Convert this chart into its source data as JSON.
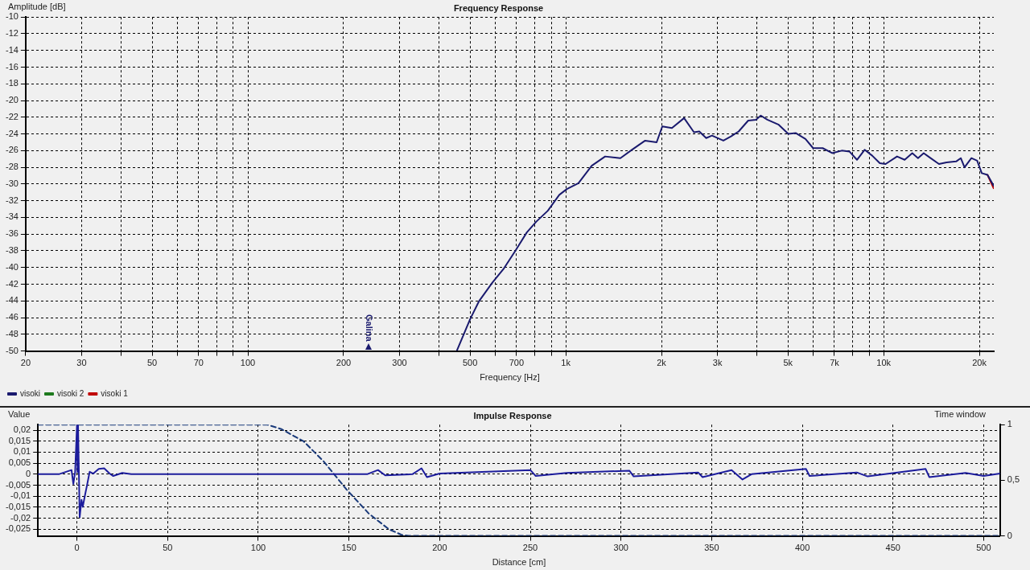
{
  "chart_data": [
    {
      "type": "line",
      "title": "Frequency Response",
      "xlabel": "Frequency [Hz]",
      "ylabel": "Amplitude [dB]",
      "log": "x",
      "grid": true,
      "legend": "bottom left",
      "marker": "none",
      "line_style": "solid",
      "xlim": [
        20,
        22200
      ],
      "ylim": [
        -50,
        -10
      ],
      "xticks": [
        20,
        30,
        {
          "value": 40,
          "label": null
        },
        50,
        {
          "value": 60,
          "label": null
        },
        70,
        {
          "value": 80,
          "label": null
        },
        {
          "value": 90,
          "label": null
        },
        100,
        200,
        300,
        {
          "value": 400,
          "label": null
        },
        500,
        {
          "value": 600,
          "label": null
        },
        700,
        {
          "value": 800,
          "label": null
        },
        {
          "value": 900,
          "label": null
        },
        {
          "value": 1000,
          "label": "1k"
        },
        {
          "value": 2000,
          "label": "2k"
        },
        {
          "value": 3000,
          "label": "3k"
        },
        {
          "value": 4000,
          "label": null
        },
        {
          "value": 5000,
          "label": "5k"
        },
        {
          "value": 6000,
          "label": null
        },
        {
          "value": 7000,
          "label": "7k"
        },
        {
          "value": 8000,
          "label": null
        },
        {
          "value": 9000,
          "label": null
        },
        {
          "value": 10000,
          "label": "10k"
        },
        {
          "value": 20000,
          "label": "20k"
        }
      ],
      "yticks": [
        -10,
        -12,
        -14,
        -16,
        -18,
        -20,
        -22,
        -24,
        -26,
        -28,
        -30,
        -32,
        -34,
        -36,
        -38,
        -40,
        -42,
        -44,
        -46,
        -48,
        -50
      ],
      "x": [
        455,
        500,
        534,
        588,
        639,
        694,
        754,
        808,
        878,
        954,
        1008,
        1096,
        1207,
        1330,
        1485,
        1614,
        1777,
        1931,
        2012,
        2157,
        2356,
        2531,
        2630,
        2765,
        2883,
        3131,
        3310,
        3498,
        3748,
        3963,
        4106,
        4306,
        4677,
        5010,
        5296,
        5675,
        5998,
        6427,
        6887,
        7380,
        7800,
        8242,
        8710,
        9204,
        9726,
        10140,
        11017,
        11641,
        12302,
        12822,
        13363,
        13928,
        14925,
        15771,
        16900,
        17480,
        17960,
        18880,
        19680,
        20350,
        21210,
        22170
      ],
      "annotations": [
        "Galina"
      ],
      "series": [
        {
          "name": "visoki 1",
          "color": "#c00000",
          "values": [
            null,
            null,
            null,
            null,
            null,
            null,
            null,
            null,
            null,
            null,
            null,
            null,
            null,
            null,
            null,
            null,
            null,
            null,
            null,
            null,
            null,
            null,
            null,
            null,
            null,
            null,
            null,
            null,
            null,
            null,
            null,
            null,
            null,
            null,
            null,
            null,
            null,
            null,
            null,
            null,
            null,
            null,
            null,
            null,
            null,
            null,
            null,
            null,
            null,
            null,
            null,
            null,
            null,
            null,
            null,
            null,
            null,
            null,
            null,
            null,
            -28.9,
            -30.5
          ]
        },
        {
          "name": "visoki 2",
          "color": "#1e7a1e",
          "values": [
            null,
            null,
            null,
            null,
            null,
            null,
            null,
            null,
            null,
            null,
            null,
            null,
            null,
            null,
            null,
            null,
            null,
            null,
            null,
            null,
            null,
            null,
            null,
            null,
            null,
            null,
            null,
            null,
            null,
            null,
            null,
            null,
            null,
            null,
            null,
            null,
            null,
            null,
            null,
            null,
            null,
            null,
            null,
            null,
            null,
            null,
            null,
            null,
            null,
            null,
            null,
            null,
            null,
            null,
            null,
            null,
            null,
            null,
            null,
            null,
            null,
            null
          ]
        },
        {
          "name": "visoki",
          "color": "#1a1a6e",
          "values": [
            -49.9,
            -46.2,
            -44.0,
            -41.8,
            -40.1,
            -38.0,
            -35.8,
            -34.5,
            -33.2,
            -31.3,
            -30.6,
            -29.9,
            -27.8,
            -26.7,
            -26.9,
            -25.9,
            -24.8,
            -25.0,
            -23.1,
            -23.3,
            -22.1,
            -23.8,
            -23.7,
            -24.5,
            -24.2,
            -24.8,
            -24.3,
            -23.7,
            -22.4,
            -22.3,
            -21.8,
            -22.3,
            -22.9,
            -24.0,
            -23.9,
            -24.6,
            -25.7,
            -25.7,
            -26.3,
            -26.0,
            -26.1,
            -27.1,
            -25.9,
            -26.6,
            -27.5,
            -27.6,
            -26.7,
            -27.1,
            -26.3,
            -26.9,
            -26.3,
            -26.8,
            -27.6,
            -27.4,
            -27.3,
            -26.9,
            -28.0,
            -26.9,
            -27.2,
            -28.7,
            -28.9,
            -30.2
          ]
        }
      ]
    },
    {
      "type": "line",
      "title": "Impulse Response",
      "xlabel": "Distance [cm]",
      "ylabel": "Value",
      "y2label": "Time window",
      "grid": true,
      "legend": false,
      "marker": "none",
      "xlim": [
        -21.5,
        509
      ],
      "ylim": [
        -0.028,
        0.0225
      ],
      "y2lim": [
        0,
        1
      ],
      "xticks": [
        0,
        50,
        100,
        150,
        200,
        250,
        300,
        350,
        400,
        450,
        500
      ],
      "yticks": [
        {
          "value": 0.02,
          "label": "0,02"
        },
        {
          "value": 0.015,
          "label": "0,015"
        },
        {
          "value": 0.01,
          "label": "0,01"
        },
        {
          "value": 0.005,
          "label": "0,005"
        },
        0,
        {
          "value": -0.005,
          "label": "-0,005"
        },
        {
          "value": -0.01,
          "label": "-0,01"
        },
        {
          "value": -0.015,
          "label": "-0,015"
        },
        {
          "value": -0.02,
          "label": "-0,02"
        },
        {
          "value": -0.025,
          "label": "-0,025"
        }
      ],
      "y2ticks": [
        0,
        {
          "value": 0.5,
          "label": "0,5"
        },
        1
      ],
      "series": [
        {
          "color": "#1a3a7a",
          "axis": "y2",
          "line_style": "dashed",
          "x": [
            -21.5,
            100,
            105,
            112.7,
            125,
            136,
            148.5,
            161,
            172,
            179,
            183,
            509
          ],
          "values": [
            1,
            1,
            1,
            0.96,
            0.85,
            0.67,
            0.42,
            0.2,
            0.06,
            0.01,
            0,
            0
          ]
        },
        {
          "color": "#1c1c9c",
          "x": [
            -21.5,
            -10,
            -3,
            -2,
            -1,
            0,
            0.3,
            0.6,
            1.5,
            2.5,
            3.2,
            4.5,
            5.5,
            7,
            9,
            12,
            15,
            18,
            20,
            25,
            30,
            160,
            166,
            170,
            185,
            190,
            193,
            200,
            250,
            253,
            270,
            304.6,
            307,
            342.5,
            345,
            361,
            367,
            372,
            402,
            404,
            430,
            436,
            468,
            470,
            490,
            500,
            509
          ],
          "values": [
            0,
            0,
            0.0019,
            -0.0044,
            0.001,
            0.0222,
            0.001,
            0.0222,
            -0.0195,
            -0.0116,
            -0.0148,
            -0.0092,
            -0.0052,
            0.0011,
            0.0003,
            0.0024,
            0.0027,
            0.0003,
            -0.0008,
            0.0006,
            0,
            0,
            0.0019,
            -0.0005,
            0,
            0.0027,
            -0.0013,
            0.0003,
            0.0019,
            -0.0008,
            0.0006,
            0.0016,
            -0.001,
            0.0008,
            -0.0013,
            0.0019,
            -0.0024,
            0,
            0.0024,
            -0.0008,
            0.0008,
            -0.001,
            0.0024,
            -0.0013,
            0.0006,
            -0.0008,
            0.0003
          ]
        }
      ]
    }
  ]
}
